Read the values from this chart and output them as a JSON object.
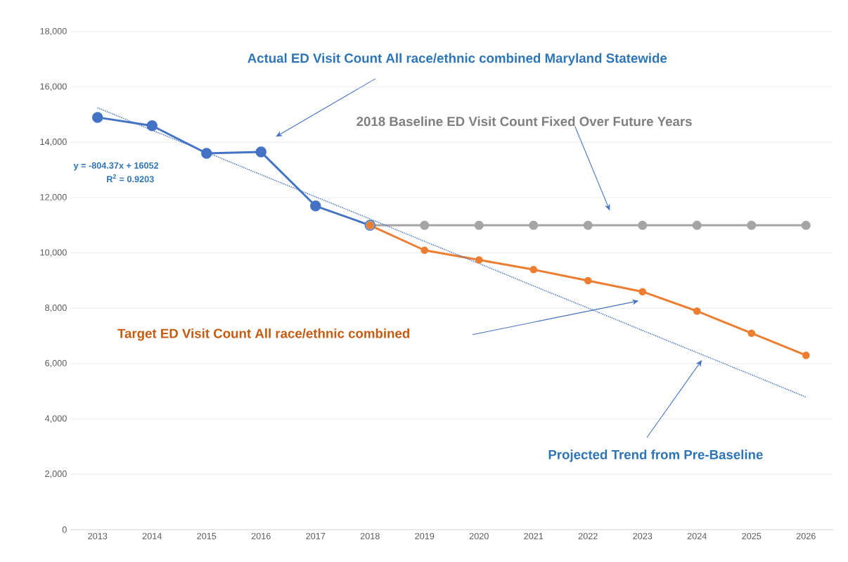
{
  "chart_data": {
    "type": "line",
    "categories": [
      "2013",
      "2014",
      "2015",
      "2016",
      "2017",
      "2018",
      "2019",
      "2020",
      "2021",
      "2022",
      "2023",
      "2024",
      "2025",
      "2026"
    ],
    "series": [
      {
        "color": "#4472c4",
        "marker": "circle",
        "line_style": "solid",
        "values": [
          14900,
          14600,
          13600,
          13650,
          11700,
          11000,
          null,
          null,
          null,
          null,
          null,
          null,
          null,
          null
        ]
      },
      {
        "color": "#a5a5a5",
        "marker": "circle",
        "line_style": "solid",
        "values": [
          null,
          null,
          null,
          null,
          null,
          11000,
          11000,
          11000,
          11000,
          11000,
          11000,
          11000,
          11000,
          11000
        ]
      },
      {
        "color": "#ed7d31",
        "marker": "circle",
        "line_style": "solid",
        "values": [
          null,
          null,
          null,
          null,
          null,
          11000,
          10100,
          9750,
          9400,
          9000,
          8600,
          7900,
          7100,
          6300
        ]
      },
      {
        "color": "#4472c4",
        "marker": "none",
        "line_style": "dotted",
        "values": [
          15250,
          14440,
          13640,
          12830,
          12030,
          11230,
          10420,
          9620,
          8810,
          8010,
          7200,
          6400,
          5600,
          4790
        ]
      }
    ],
    "ylim": [
      0,
      18000
    ],
    "yticks": [
      {
        "value": 0,
        "label": "0"
      },
      {
        "value": 2000,
        "label": "2,000"
      },
      {
        "value": 4000,
        "label": "4,000"
      },
      {
        "value": 6000,
        "label": "6,000"
      },
      {
        "value": 8000,
        "label": "8,000"
      },
      {
        "value": 10000,
        "label": "10,000"
      },
      {
        "value": 12000,
        "label": "12,000"
      },
      {
        "value": 14000,
        "label": "14,000"
      },
      {
        "value": 16000,
        "label": "16,000"
      },
      {
        "value": 18000,
        "label": "18,000"
      }
    ],
    "grid": "y",
    "annotations": [
      "Actual ED Visit Count All race/ethnic combined Maryland Statewide",
      "2018 Baseline ED Visit Count Fixed Over Future Years",
      "Target ED Visit Count All race/ethnic combined",
      "Projected Trend from Pre-Baseline",
      "y = -804.37x + 16052",
      "R$^{2}$ = 0.9203"
    ]
  }
}
